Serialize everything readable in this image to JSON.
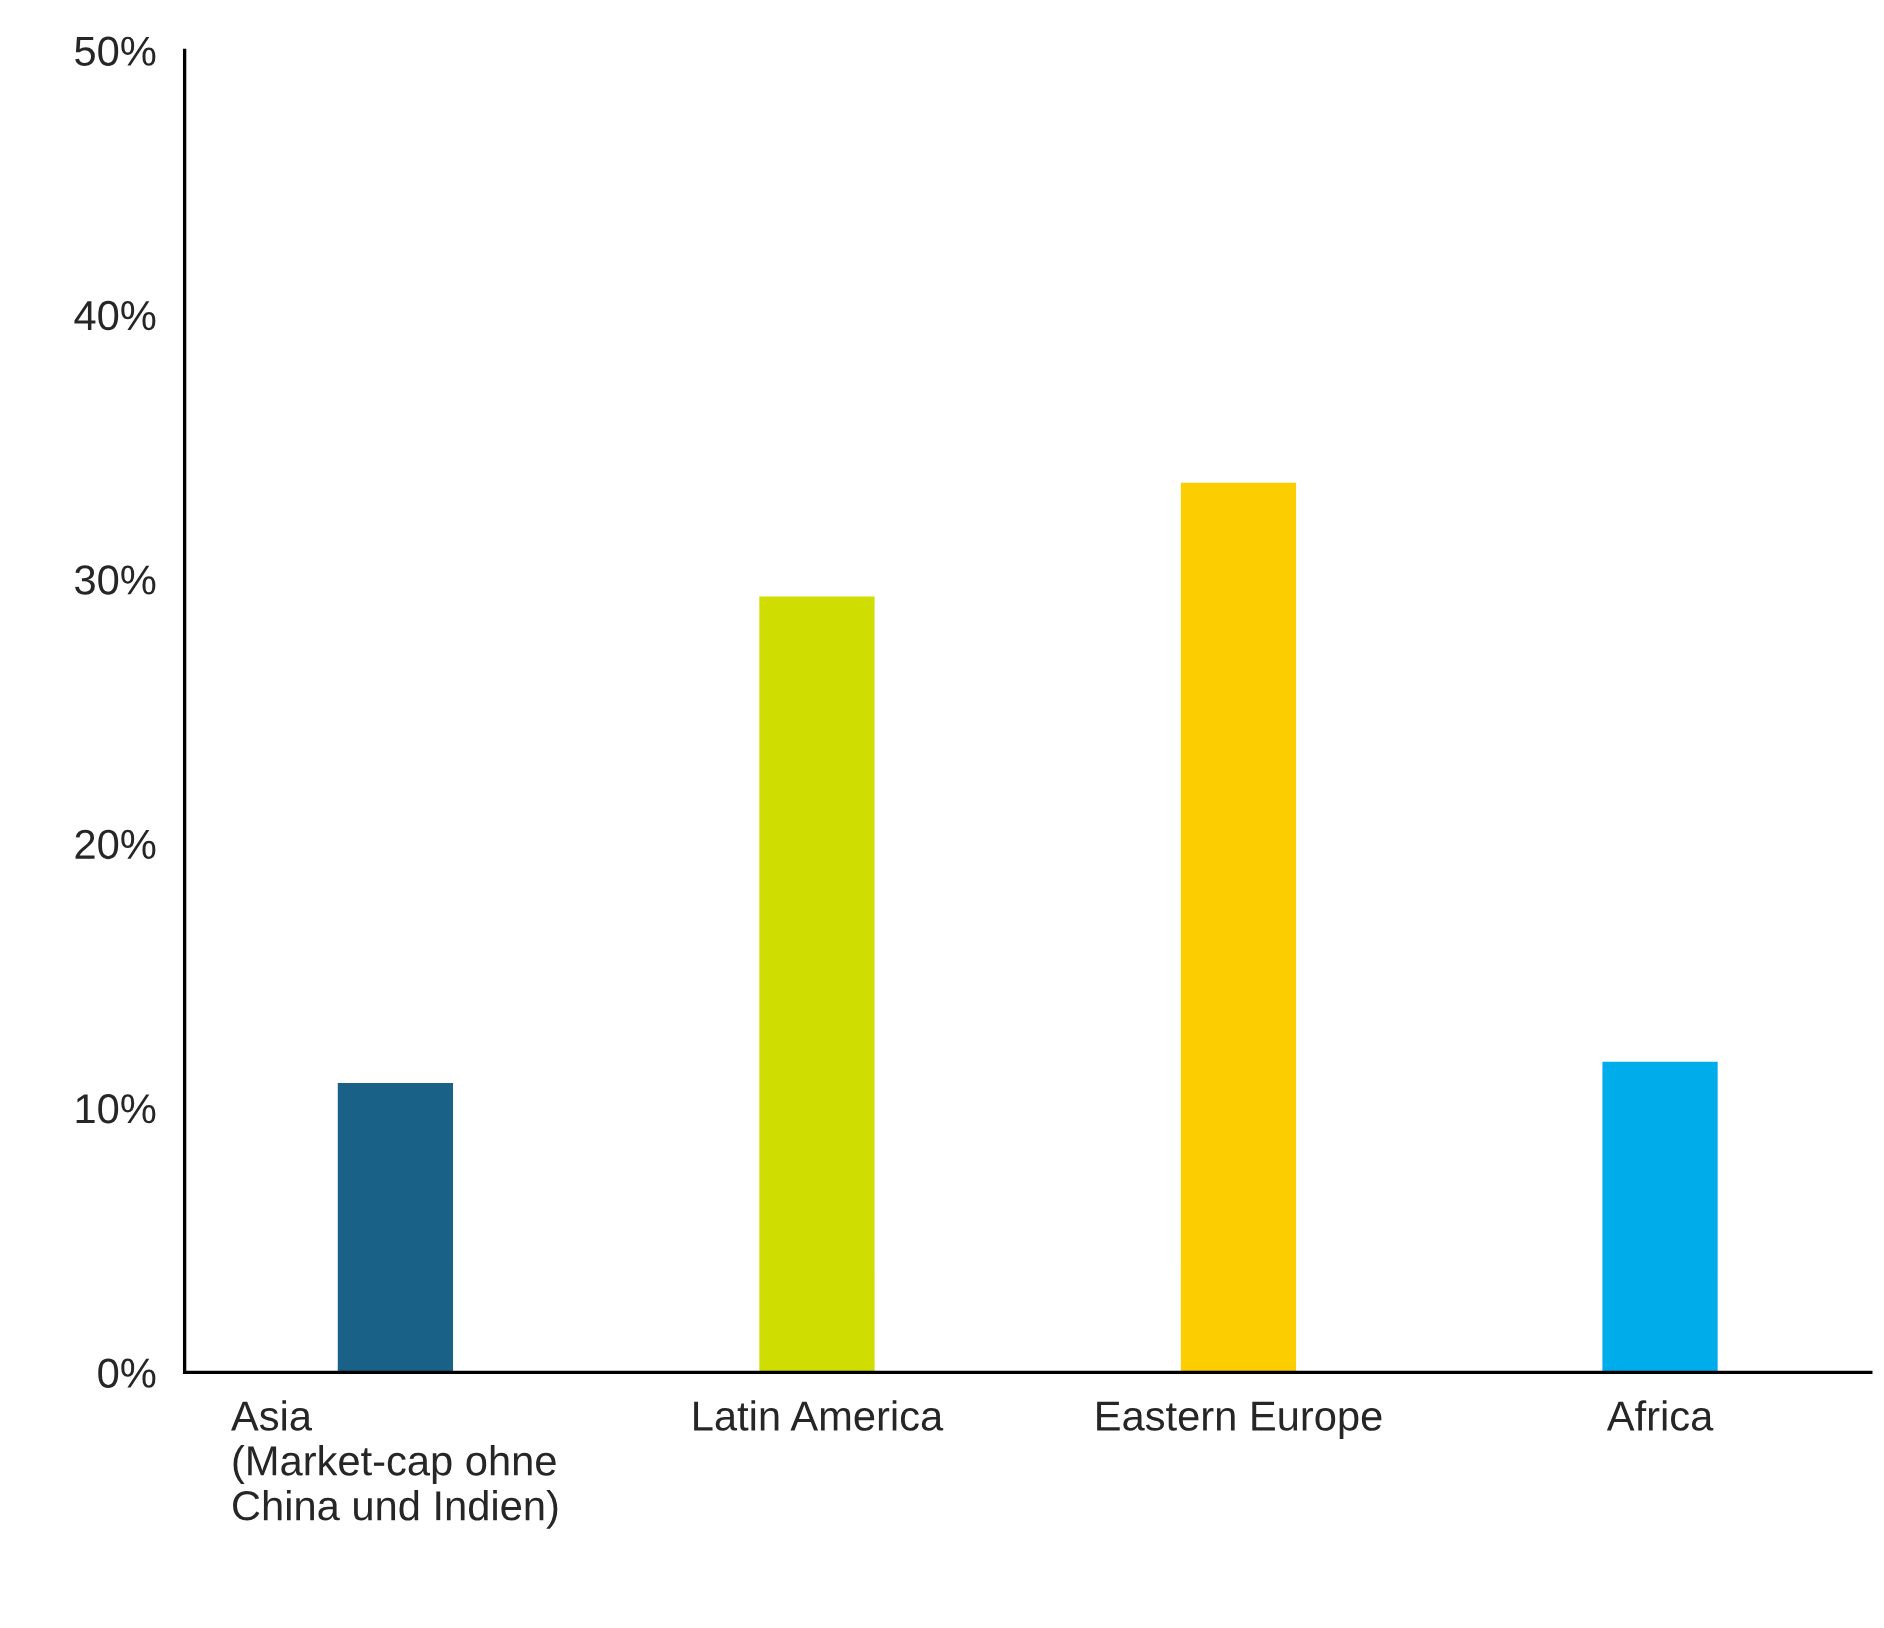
{
  "chart_data": {
    "type": "bar",
    "categories": [
      "Asia\n(Market-cap ohne\nChina und Indien)",
      "Latin America",
      "Eastern Europe",
      "Africa"
    ],
    "values": [
      11.0,
      29.4,
      33.7,
      11.8
    ],
    "colors": [
      "#1a6188",
      "#d0dd00",
      "#fccd00",
      "#00adeb"
    ],
    "ylim": [
      0,
      50
    ],
    "yticks": [
      {
        "value": 0,
        "label": "0%"
      },
      {
        "value": 10,
        "label": "10%"
      },
      {
        "value": 20,
        "label": "20%"
      },
      {
        "value": 30,
        "label": "30%"
      },
      {
        "value": 40,
        "label": "40%"
      },
      {
        "value": 50,
        "label": "50%"
      }
    ],
    "grid": false,
    "legend": false
  }
}
